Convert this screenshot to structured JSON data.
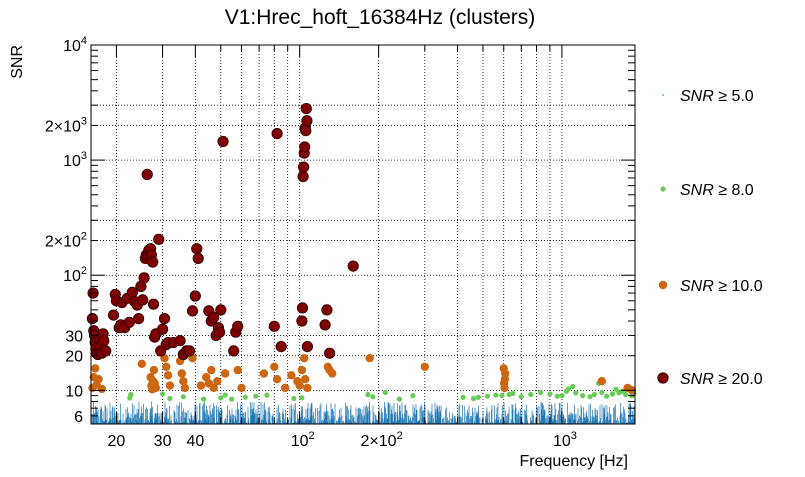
{
  "chart_data": {
    "type": "scatter",
    "title": "V1:Hrec_hoft_16384Hz (clusters)",
    "xlabel": "Frequency [Hz]",
    "ylabel": "SNR",
    "xscale": "log",
    "yscale": "log",
    "xlim": [
      16,
      1900
    ],
    "ylim": [
      5.1,
      10000
    ],
    "grid": true,
    "x_ticks": [
      {
        "value": 20,
        "label": "20"
      },
      {
        "value": 30,
        "label": "30"
      },
      {
        "value": 40,
        "label": "40"
      },
      {
        "value": 100,
        "label": "10",
        "exponent": "2"
      },
      {
        "value": 200,
        "label": "2×10",
        "exponent": "2"
      },
      {
        "value": 1000,
        "label": "10",
        "exponent": "3"
      }
    ],
    "y_ticks": [
      {
        "value": 6,
        "label": "6"
      },
      {
        "value": 10,
        "label": "10"
      },
      {
        "value": 20,
        "label": "20"
      },
      {
        "value": 30,
        "label": "30"
      },
      {
        "value": 100,
        "label": "10",
        "exponent": "2"
      },
      {
        "value": 200,
        "label": "2×10",
        "exponent": "2"
      },
      {
        "value": 1000,
        "label": "10",
        "exponent": "3"
      },
      {
        "value": 2000,
        "label": "2×10",
        "exponent": "3"
      },
      {
        "value": 10000,
        "label": "10",
        "exponent": "4"
      }
    ],
    "legend_position": "right",
    "series": [
      {
        "name": "SNR ≥ 5.0",
        "symbol": "SNR",
        "threshold": "5.0",
        "color": "#1f77b4",
        "note_kind": "dense-noise-floor",
        "range": [
          5.1,
          8.0
        ],
        "points": []
      },
      {
        "name": "SNR ≥ 8.0",
        "symbol": "SNR",
        "threshold": "8.0",
        "color": "#66cc55",
        "points": [
          [
            22.5,
            8.6
          ],
          [
            22.7,
            9.2
          ],
          [
            30,
            9.3
          ],
          [
            32,
            8.5
          ],
          [
            36,
            8.8
          ],
          [
            43,
            8.4
          ],
          [
            50,
            8.6
          ],
          [
            52,
            9.1
          ],
          [
            55,
            8.4
          ],
          [
            62,
            8.7
          ],
          [
            68,
            8.9
          ],
          [
            75,
            9.1
          ],
          [
            95,
            8.5
          ],
          [
            102,
            8.6
          ],
          [
            182,
            9.2
          ],
          [
            190,
            8.8
          ],
          [
            212,
            9.6
          ],
          [
            240,
            8.4
          ],
          [
            270,
            9.0
          ],
          [
            420,
            8.7
          ],
          [
            460,
            8.5
          ],
          [
            480,
            8.7
          ],
          [
            520,
            8.9
          ],
          [
            560,
            9.1
          ],
          [
            590,
            9.0
          ],
          [
            630,
            9.2
          ],
          [
            650,
            9.4
          ],
          [
            700,
            8.8
          ],
          [
            760,
            9.2
          ],
          [
            830,
            9.6
          ],
          [
            900,
            9.3
          ],
          [
            960,
            8.9
          ],
          [
            1000,
            9.0
          ],
          [
            1040,
            9.8
          ],
          [
            1060,
            10.3
          ],
          [
            1100,
            10.8
          ],
          [
            1130,
            9.5
          ],
          [
            1200,
            9.0
          ],
          [
            1280,
            8.8
          ],
          [
            1330,
            9.2
          ],
          [
            1380,
            11.5
          ],
          [
            1420,
            9.6
          ],
          [
            1480,
            8.9
          ],
          [
            1560,
            9.3
          ],
          [
            1610,
            10.2
          ],
          [
            1650,
            9.5
          ],
          [
            1700,
            9.8
          ],
          [
            1750,
            9.2
          ],
          [
            1810,
            10.6
          ],
          [
            1850,
            9.0
          ],
          [
            1880,
            9.4
          ]
        ]
      },
      {
        "name": "SNR ≥ 10.0",
        "symbol": "SNR",
        "threshold": "10.0",
        "color": "#cc6611",
        "points": [
          [
            16.2,
            10.5
          ],
          [
            16.4,
            13
          ],
          [
            16.6,
            15.5
          ],
          [
            16.8,
            11.2
          ],
          [
            17.1,
            12.5
          ],
          [
            17.6,
            10.3
          ],
          [
            25,
            17
          ],
          [
            27,
            13
          ],
          [
            27.2,
            11
          ],
          [
            27.4,
            10.2
          ],
          [
            27.6,
            12
          ],
          [
            27.8,
            15
          ],
          [
            28,
            11.5
          ],
          [
            28.3,
            10.5
          ],
          [
            30.5,
            19
          ],
          [
            31,
            16
          ],
          [
            31.5,
            13.5
          ],
          [
            32,
            11
          ],
          [
            35,
            18
          ],
          [
            35.5,
            14
          ],
          [
            36,
            12
          ],
          [
            36.5,
            10.5
          ],
          [
            39,
            19
          ],
          [
            42,
            11
          ],
          [
            44,
            13
          ],
          [
            45,
            11.5
          ],
          [
            46,
            15
          ],
          [
            47,
            10.5
          ],
          [
            48.5,
            12
          ],
          [
            52,
            14
          ],
          [
            58,
            15
          ],
          [
            60,
            10.5
          ],
          [
            73,
            14
          ],
          [
            80,
            16
          ],
          [
            82,
            12.5
          ],
          [
            88,
            10.5
          ],
          [
            93,
            13.5
          ],
          [
            98,
            12
          ],
          [
            100,
            11
          ],
          [
            102,
            15
          ],
          [
            104,
            19
          ],
          [
            105,
            12.5
          ],
          [
            107,
            10.5
          ],
          [
            128,
            16
          ],
          [
            130,
            15
          ],
          [
            133,
            14
          ],
          [
            185,
            19
          ],
          [
            300,
            16
          ],
          [
            600,
            15.5
          ],
          [
            602,
            11.5
          ],
          [
            604,
            10.5
          ],
          [
            606,
            12.5
          ],
          [
            608,
            14
          ],
          [
            1420,
            12
          ],
          [
            1780,
            10.5
          ],
          [
            1850,
            10
          ]
        ]
      },
      {
        "name": "SNR ≥ 20.0",
        "symbol": "SNR",
        "threshold": "20.0",
        "color": "#800000",
        "points": [
          [
            16.2,
            42
          ],
          [
            16.3,
            70
          ],
          [
            16.4,
            33
          ],
          [
            16.5,
            30
          ],
          [
            16.6,
            26
          ],
          [
            16.7,
            23
          ],
          [
            16.8,
            21
          ],
          [
            17,
            20.5
          ],
          [
            17.2,
            28
          ],
          [
            17.3,
            22
          ],
          [
            17.4,
            24
          ],
          [
            17.6,
            21
          ],
          [
            17.8,
            31
          ],
          [
            17.9,
            27
          ],
          [
            18.2,
            22
          ],
          [
            19.5,
            45
          ],
          [
            19.8,
            68
          ],
          [
            20,
            60
          ],
          [
            20.5,
            35
          ],
          [
            20.8,
            37
          ],
          [
            21,
            58
          ],
          [
            21.5,
            35
          ],
          [
            22,
            63
          ],
          [
            22.4,
            39
          ],
          [
            23,
            71
          ],
          [
            23.5,
            59
          ],
          [
            24,
            55
          ],
          [
            24.3,
            42
          ],
          [
            24.8,
            80
          ],
          [
            25.2,
            61
          ],
          [
            25.5,
            95
          ],
          [
            25.8,
            140
          ],
          [
            26,
            150
          ],
          [
            26.2,
            750
          ],
          [
            26.4,
            150
          ],
          [
            26.6,
            165
          ],
          [
            27,
            170
          ],
          [
            27.2,
            150
          ],
          [
            27.5,
            130
          ],
          [
            27.7,
            56
          ],
          [
            28,
            29
          ],
          [
            28.3,
            31
          ],
          [
            29,
            205
          ],
          [
            29.5,
            22
          ],
          [
            30,
            34
          ],
          [
            30.5,
            42
          ],
          [
            31,
            25
          ],
          [
            31.5,
            26
          ],
          [
            33,
            26
          ],
          [
            35,
            27
          ],
          [
            36,
            20.5
          ],
          [
            37,
            22
          ],
          [
            38,
            22
          ],
          [
            39,
            49
          ],
          [
            40,
            66
          ],
          [
            40.5,
            170
          ],
          [
            41,
            140
          ],
          [
            45,
            49
          ],
          [
            46,
            40
          ],
          [
            47,
            43
          ],
          [
            48,
            30
          ],
          [
            49,
            35
          ],
          [
            49.5,
            32
          ],
          [
            50,
            50
          ],
          [
            51,
            1450
          ],
          [
            56,
            22
          ],
          [
            57,
            32
          ],
          [
            58,
            36
          ],
          [
            80,
            36
          ],
          [
            82,
            1700
          ],
          [
            85,
            24
          ],
          [
            102,
            40
          ],
          [
            102.5,
            52
          ],
          [
            103,
            720
          ],
          [
            103.5,
            870
          ],
          [
            104,
            1150
          ],
          [
            104.5,
            1300
          ],
          [
            105,
            1900
          ],
          [
            105.5,
            1800
          ],
          [
            106,
            2800
          ],
          [
            106.5,
            2200
          ],
          [
            107,
            24
          ],
          [
            125,
            37
          ],
          [
            127,
            50
          ],
          [
            130,
            21
          ],
          [
            160,
            120
          ]
        ]
      }
    ]
  }
}
